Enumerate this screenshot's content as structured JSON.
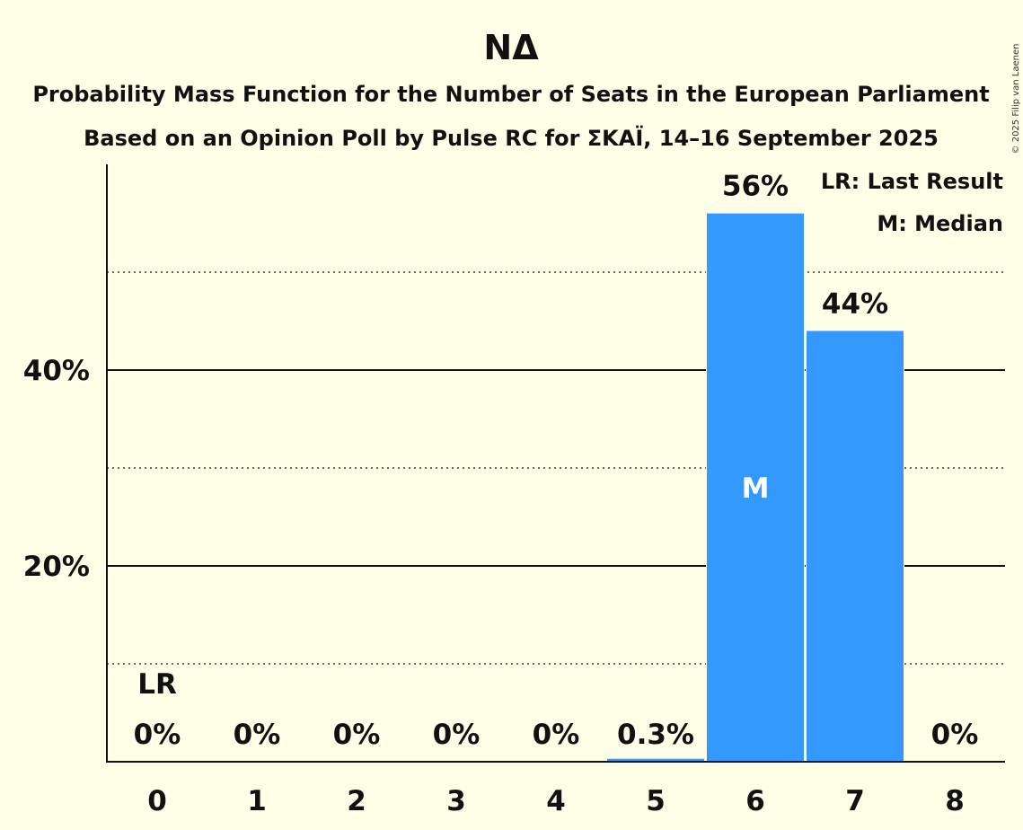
{
  "chart_data": {
    "type": "bar",
    "title": "ΝΔ",
    "subtitle_lines": [
      "Probability Mass Function for the Number of Seats in the European Parliament",
      "Based on an Opinion Poll by Pulse RC for ΣΚΑΪ, 14–16 September 2025"
    ],
    "categories": [
      "0",
      "1",
      "2",
      "3",
      "4",
      "5",
      "6",
      "7",
      "8"
    ],
    "values": [
      0,
      0,
      0,
      0,
      0,
      0.3,
      56,
      44,
      0
    ],
    "value_labels": [
      "0%",
      "0%",
      "0%",
      "0%",
      "0%",
      "0.3%",
      "56%",
      "44%",
      "0%"
    ],
    "ylim": [
      0,
      61
    ],
    "yticks": [
      20,
      40
    ],
    "ytick_labels": [
      "20%",
      "40%"
    ],
    "minor_gridlines": [
      10,
      30,
      50
    ],
    "bar_color": "#3399FF",
    "last_result_index": 0,
    "last_result_marker": "LR",
    "median_index": 6,
    "median_marker": "M",
    "legend": [
      "LR: Last Result",
      "M: Median"
    ],
    "legend_position": "top-right",
    "copyright": "© 2025 Filip van Laenen"
  }
}
